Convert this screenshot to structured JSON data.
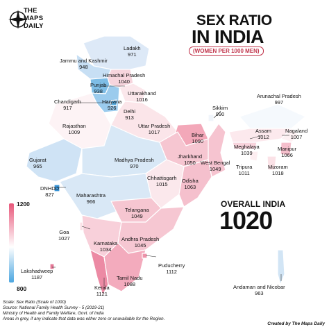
{
  "header": {
    "logo_line1": "THE",
    "logo_line2": "MAPS",
    "logo_line3": "DAILY",
    "title_line1": "SEX RATIO",
    "title_line2": "IN INDIA",
    "subtitle": "(WOMEN PER 1000 MEN)"
  },
  "regions": [
    {
      "name": "Ladakh",
      "value": "971"
    },
    {
      "name": "Jammu and Kashmir",
      "value": "948"
    },
    {
      "name": "Himachal Pradesh",
      "value": "1040"
    },
    {
      "name": "Punjab",
      "value": "938"
    },
    {
      "name": "Chandigarh",
      "value": "917"
    },
    {
      "name": "Uttarakhand",
      "value": "1016"
    },
    {
      "name": "Haryana",
      "value": "926"
    },
    {
      "name": "Delhi",
      "value": "913"
    },
    {
      "name": "Rajasthan",
      "value": "1009"
    },
    {
      "name": "Uttar Pradesh",
      "value": "1017"
    },
    {
      "name": "Arunachal Pradesh",
      "value": "997"
    },
    {
      "name": "Sikkim",
      "value": "990"
    },
    {
      "name": "Bihar",
      "value": "1090"
    },
    {
      "name": "Assam",
      "value": "1012"
    },
    {
      "name": "Nagaland",
      "value": "1007"
    },
    {
      "name": "Meghalaya",
      "value": "1039"
    },
    {
      "name": "Manipur",
      "value": "1066"
    },
    {
      "name": "Gujarat",
      "value": "965"
    },
    {
      "name": "Madhya Pradesh",
      "value": "970"
    },
    {
      "name": "Jharkhand",
      "value": "1050"
    },
    {
      "name": "West Bengal",
      "value": "1049"
    },
    {
      "name": "Tripura",
      "value": "1011"
    },
    {
      "name": "Mizoram",
      "value": "1018"
    },
    {
      "name": "DNHDD",
      "value": "827"
    },
    {
      "name": "Chhattisgarh",
      "value": "1015"
    },
    {
      "name": "Odisha",
      "value": "1063"
    },
    {
      "name": "Maharashtra",
      "value": "966"
    },
    {
      "name": "Telangana",
      "value": "1049"
    },
    {
      "name": "Goa",
      "value": "1027"
    },
    {
      "name": "Karnataka",
      "value": "1034"
    },
    {
      "name": "Andhra Pradesh",
      "value": "1045"
    },
    {
      "name": "Lakshadweep",
      "value": "1187"
    },
    {
      "name": "Puducherry",
      "value": "1112"
    },
    {
      "name": "Tamil Nadu",
      "value": "1088"
    },
    {
      "name": "Kerala",
      "value": "1121"
    },
    {
      "name": "Andaman and Nicobar",
      "value": "963"
    }
  ],
  "overall": {
    "label": "OVERALL INDIA",
    "value": "1020"
  },
  "legend": {
    "max": "1200",
    "min": "800",
    "color_high": "#e8577a",
    "color_mid": "#ffffff",
    "color_low": "#4ba6e0"
  },
  "footer": {
    "scale": "Scale: Sex Ratio (Scale of 1000)",
    "source": "Source: National Family Health Survey - 5 (2019-21)",
    "ministry": "Ministry of Health and Family Welfare, Govt. of India",
    "note": "Areas in grey, if any indicate that data was either zero or unavailable for the Region.",
    "credit": "Created by The Maps Daily"
  }
}
